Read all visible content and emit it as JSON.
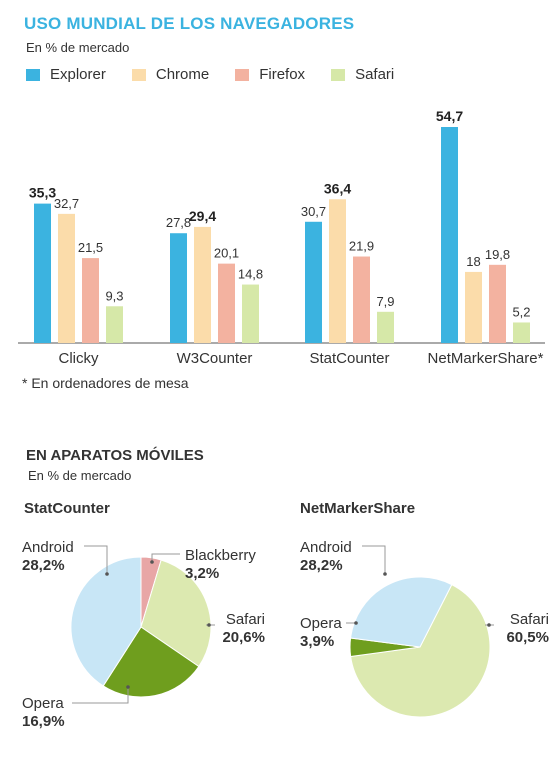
{
  "header": {
    "title": "USO MUNDIAL DE LOS NAVEGADORES",
    "subtitle": "En % de mercado"
  },
  "legend": [
    {
      "label": "Explorer",
      "color": "#3bb3e0"
    },
    {
      "label": "Chrome",
      "color": "#fbdcaa"
    },
    {
      "label": "Firefox",
      "color": "#f3b2a0"
    },
    {
      "label": "Safari",
      "color": "#d6e8a8"
    }
  ],
  "footnote": "* En ordenadores de mesa",
  "mobile": {
    "title": "EN APARATOS MÓVILES",
    "subtitle": "En % de mercado"
  },
  "chart_data": [
    {
      "type": "bar",
      "title": "USO MUNDIAL DE LOS NAVEGADORES",
      "subtitle": "En % de mercado",
      "categories": [
        "Clicky",
        "W3Counter",
        "StatCounter",
        "NetMarkerShare*"
      ],
      "series": [
        {
          "name": "Explorer",
          "values": [
            35.3,
            27.8,
            30.7,
            54.7
          ],
          "labels": [
            "35,3",
            "27,8",
            "30,7",
            "54,7"
          ],
          "color": "#3bb3e0"
        },
        {
          "name": "Chrome",
          "values": [
            32.7,
            29.4,
            36.4,
            18
          ],
          "labels": [
            "32,7",
            "29,4",
            "36,4",
            "18"
          ],
          "color": "#fbdcaa"
        },
        {
          "name": "Firefox",
          "values": [
            21.5,
            20.1,
            21.9,
            19.8
          ],
          "labels": [
            "21,5",
            "20,1",
            "21,9",
            "19,8"
          ],
          "color": "#f3b2a0"
        },
        {
          "name": "Safari",
          "values": [
            9.3,
            14.8,
            7.9,
            5.2
          ],
          "labels": [
            "9,3",
            "14,8",
            "7,9",
            "5,2"
          ],
          "color": "#d6e8a8"
        }
      ],
      "ylim": [
        0,
        54.7
      ],
      "bold_max_per_group": true
    },
    {
      "type": "pie",
      "title": "StatCounter",
      "slices": [
        {
          "name": "Blackberry",
          "value": 3.2,
          "label": "3,2%",
          "color": "#e8a6a6"
        },
        {
          "name": "Safari",
          "value": 20.6,
          "label": "20,6%",
          "color": "#dce9b0"
        },
        {
          "name": "Opera",
          "value": 16.9,
          "label": "16,9%",
          "color": "#6f9e1e"
        },
        {
          "name": "Android",
          "value": 28.2,
          "label": "28,2%",
          "color": "#c8e6f6"
        }
      ]
    },
    {
      "type": "pie",
      "title": "NetMarkerShare",
      "slices": [
        {
          "name": "Safari",
          "value": 60.5,
          "label": "60,5%",
          "color": "#dce9b0"
        },
        {
          "name": "Opera",
          "value": 3.9,
          "label": "3,9%",
          "color": "#6f9e1e"
        },
        {
          "name": "Android",
          "value": 28.2,
          "label": "28,2%",
          "color": "#c8e6f6"
        }
      ]
    }
  ]
}
